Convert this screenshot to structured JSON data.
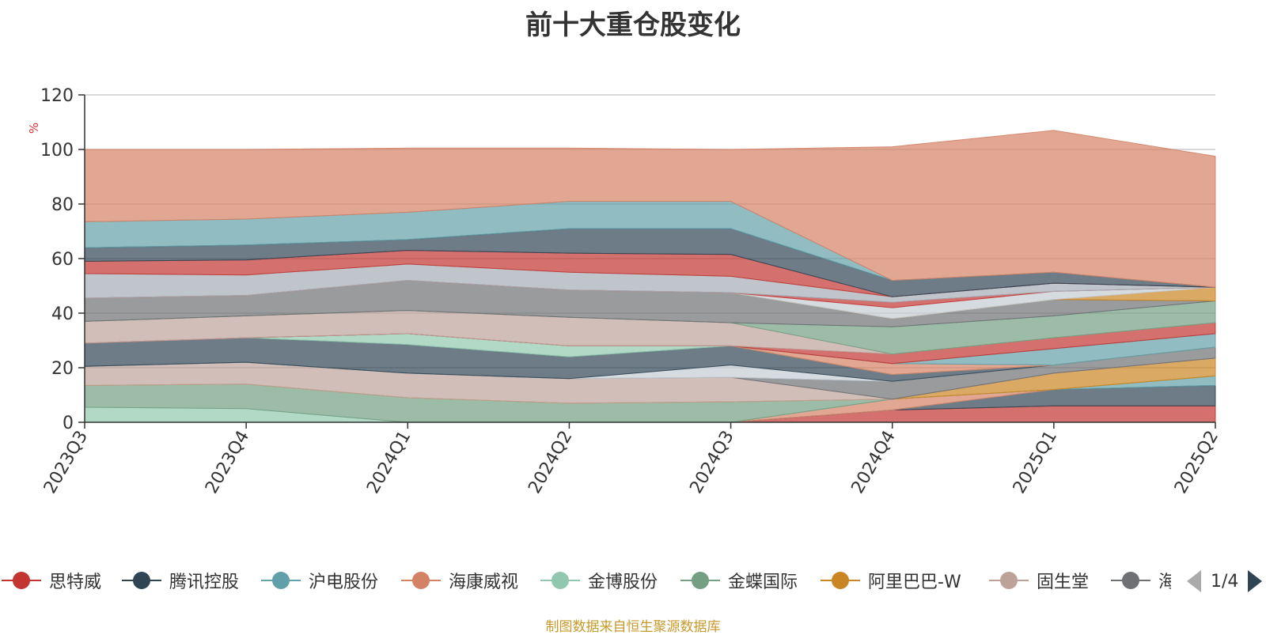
{
  "chart_data": {
    "type": "area",
    "title": "前十大重仓股变化",
    "xlabel": "",
    "ylabel": "%",
    "ylim": [
      0,
      120
    ],
    "yticks": [
      "0",
      "20",
      "40",
      "60",
      "80",
      "100",
      "120"
    ],
    "grid": true,
    "stacked": true,
    "x": [
      "2023Q3",
      "2023Q4",
      "2024Q1",
      "2024Q2",
      "2024Q3",
      "2024Q4",
      "2025Q1",
      "2025Q2"
    ],
    "series": [
      {
        "name": "思特威",
        "color": "#c23531",
        "values": [
          0,
          0,
          0,
          0,
          0,
          4.5,
          6,
          6
        ]
      },
      {
        "name": "腾讯控股",
        "color": "#2f4554",
        "values": [
          0,
          0,
          0,
          0,
          0,
          0,
          6,
          7.5
        ]
      },
      {
        "name": "沪电股份",
        "color": "#61a0a8",
        "values": [
          0,
          0,
          0,
          0,
          0,
          0,
          0,
          3.5
        ]
      },
      {
        "name": "海康威视",
        "color": "#d48265",
        "values": [
          0,
          0,
          0,
          0,
          0,
          4,
          0,
          0
        ]
      },
      {
        "name": "金博股份",
        "color": "#91c7ae",
        "values": [
          5.5,
          5,
          0,
          0,
          0,
          0,
          0,
          0
        ]
      },
      {
        "name": "金蝶国际",
        "color": "#749f83",
        "values": [
          8,
          9,
          9,
          7,
          7.5,
          0,
          0,
          0
        ]
      },
      {
        "name": "阿里巴巴-W",
        "color": "#ca8622",
        "values": [
          0,
          0,
          0,
          0,
          0,
          0,
          6,
          6.5
        ]
      },
      {
        "name": "固生堂",
        "color": "#bda29a",
        "values": [
          7,
          8,
          9,
          9,
          9,
          0,
          0,
          0
        ]
      },
      {
        "name": "海",
        "color": "#6e7074",
        "values": [
          0,
          0,
          0,
          0,
          0,
          6.5,
          3,
          4
        ]
      },
      {
        "name": "",
        "color": "#c4ccd3",
        "values": [
          0,
          0,
          0,
          0,
          4.5,
          0,
          0,
          0
        ]
      },
      {
        "name": "",
        "color": "#2f4554",
        "values": [
          8.5,
          9,
          10.5,
          8,
          7,
          2.5,
          0,
          0
        ]
      },
      {
        "name": "",
        "color": "#91c7ae",
        "values": [
          0,
          0,
          4,
          4,
          0,
          0,
          0,
          0
        ]
      },
      {
        "name": "",
        "color": "#d48265",
        "values": [
          0,
          0,
          0,
          0,
          0,
          4,
          0,
          0
        ]
      },
      {
        "name": "",
        "color": "#61a0a8",
        "values": [
          0,
          0,
          0,
          0,
          0,
          0,
          6,
          5
        ]
      },
      {
        "name": "",
        "color": "#c23531",
        "values": [
          0,
          0,
          0,
          0,
          0,
          3.5,
          4,
          4
        ]
      },
      {
        "name": "",
        "color": "#bda29a",
        "values": [
          8,
          8,
          8.5,
          10.5,
          8.5,
          0,
          0,
          0
        ]
      },
      {
        "name": "",
        "color": "#749f83",
        "values": [
          0,
          0,
          0,
          0,
          0,
          10,
          8,
          8
        ]
      },
      {
        "name": "",
        "color": "#6e7074",
        "values": [
          8.5,
          7.5,
          11,
          10,
          11,
          3,
          6,
          0
        ]
      },
      {
        "name": "",
        "color": "#ca8622",
        "values": [
          0,
          0,
          0,
          0,
          0,
          0,
          0,
          5
        ]
      },
      {
        "name": "",
        "color": "#91a0a8",
        "values": [
          0,
          0,
          0,
          0,
          0,
          0,
          0,
          0
        ]
      },
      {
        "name": "",
        "color": "#c4ccd3",
        "values": [
          0,
          0,
          0,
          0,
          0,
          4,
          3,
          0
        ]
      },
      {
        "name": "",
        "color": "#c23531",
        "values": [
          0,
          0,
          0,
          0,
          0,
          2,
          0,
          0
        ]
      },
      {
        "name": "",
        "color": "#a4acb5",
        "values": [
          9,
          7.5,
          6,
          6.5,
          6,
          2,
          3,
          0
        ]
      },
      {
        "name": "",
        "color": "#c23531",
        "values": [
          4.5,
          5.5,
          5,
          7,
          8,
          0,
          0,
          0
        ]
      },
      {
        "name": "",
        "color": "#2f4554",
        "values": [
          5,
          5.5,
          4,
          9,
          9.5,
          6,
          4,
          0
        ]
      },
      {
        "name": "",
        "color": "#61a0a8",
        "values": [
          9.5,
          9.5,
          10,
          10,
          10,
          0,
          0,
          0
        ]
      },
      {
        "name": "",
        "color": "#d48265",
        "values": [
          26.5,
          25.5,
          23.5,
          19.5,
          19,
          49,
          52,
          48
        ]
      }
    ]
  },
  "legend": {
    "items": [
      {
        "label": "思特威",
        "color": "#c23531"
      },
      {
        "label": "腾讯控股",
        "color": "#2f4554"
      },
      {
        "label": "沪电股份",
        "color": "#61a0a8"
      },
      {
        "label": "海康威视",
        "color": "#d48265"
      },
      {
        "label": "金博股份",
        "color": "#91c7ae"
      },
      {
        "label": "金蝶国际",
        "color": "#749f83"
      },
      {
        "label": "阿里巴巴-W",
        "color": "#ca8622"
      },
      {
        "label": "固生堂",
        "color": "#bda29a"
      },
      {
        "label": "海",
        "color": "#6e7074"
      }
    ],
    "page": "1/4",
    "prev_icon": "triangle-left-icon",
    "next_icon": "triangle-right-icon"
  },
  "footer": "制图数据来自恒生聚源数据库"
}
